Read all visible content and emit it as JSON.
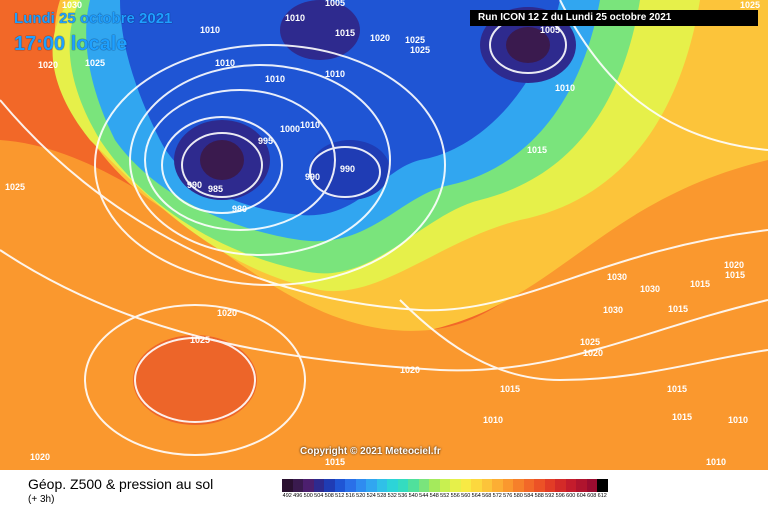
{
  "header": {
    "date": "Lundi 25 octobre 2021",
    "time": "17:00 locale",
    "run": "Run ICON 12 Z du Lundi 25 octobre 2021"
  },
  "copyright": "Copyright © 2021 Meteociel.fr",
  "footer": {
    "title": "Géop. Z500 & pression au sol",
    "subtitle": "(+ 3h)"
  },
  "legend_scale": [
    "492",
    "496",
    "500",
    "504",
    "508",
    "512",
    "516",
    "520",
    "524",
    "528",
    "532",
    "536",
    "540",
    "544",
    "548",
    "552",
    "556",
    "560",
    "564",
    "568",
    "572",
    "576",
    "580",
    "584",
    "588",
    "592",
    "596",
    "600",
    "604",
    "608",
    "612"
  ],
  "legend_colors": [
    "#2a1030",
    "#3a1a4e",
    "#4c1f6e",
    "#2e2a8e",
    "#1f3cb4",
    "#1f55d4",
    "#2a70e8",
    "#2f8cf0",
    "#31a6f0",
    "#30c0e8",
    "#2cd4d8",
    "#34dcc0",
    "#50e09c",
    "#7ae47c",
    "#a4ea5c",
    "#c8f050",
    "#e6f04a",
    "#f8ea44",
    "#fcd83e",
    "#fcc43a",
    "#fcae34",
    "#fa982e",
    "#f6802a",
    "#f26828",
    "#ec5226",
    "#e23c26",
    "#d42a28",
    "#c41c2c",
    "#b0142e",
    "#9a0c30",
    "#000000"
  ],
  "pressure_labels": [
    "1030",
    "1005",
    "1010",
    "1010",
    "1015",
    "1020",
    "1025",
    "1025",
    "1005",
    "1010",
    "1020",
    "1025",
    "1010",
    "1010",
    "1010",
    "995",
    "1000",
    "1010",
    "990",
    "985",
    "980",
    "990",
    "990",
    "1015",
    "1025",
    "1020",
    "1030",
    "1030",
    "1015",
    "1015",
    "1030",
    "1025",
    "1020",
    "1020",
    "1020",
    "1015",
    "1015",
    "1015",
    "1015",
    "1010",
    "1010",
    "1010",
    "1015",
    "1020",
    "1025",
    "1025"
  ]
}
